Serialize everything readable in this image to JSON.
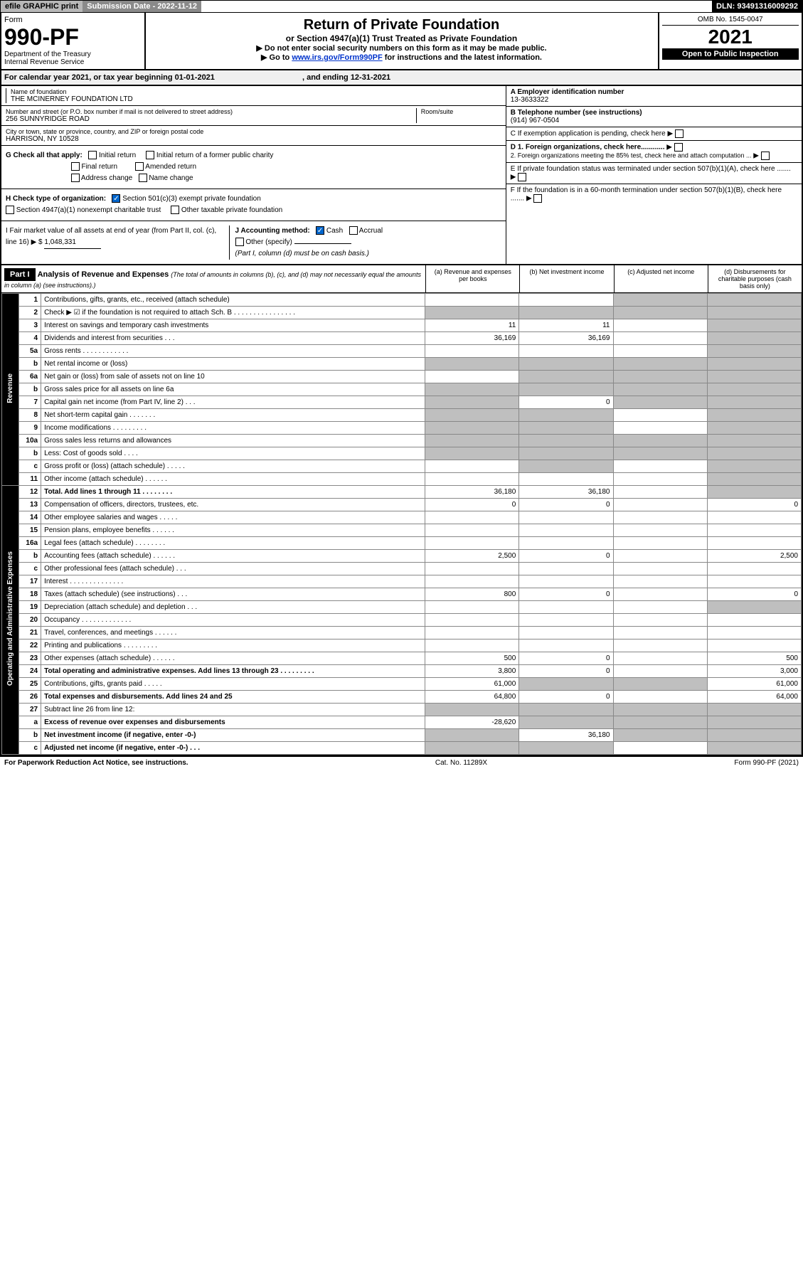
{
  "topbar": {
    "efile": "efile GRAPHIC print",
    "submission": "Submission Date - 2022-11-12",
    "dln": "DLN: 93491316009292"
  },
  "header": {
    "form_label": "Form",
    "form_no": "990-PF",
    "dept": "Department of the Treasury",
    "irs": "Internal Revenue Service",
    "title": "Return of Private Foundation",
    "subtitle": "or Section 4947(a)(1) Trust Treated as Private Foundation",
    "instr1": "▶ Do not enter social security numbers on this form as it may be made public.",
    "instr2a": "▶ Go to ",
    "instr2b": "www.irs.gov/Form990PF",
    "instr2c": " for instructions and the latest information.",
    "omb": "OMB No. 1545-0047",
    "year": "2021",
    "open": "Open to Public Inspection"
  },
  "calyear": {
    "text": "For calendar year 2021, or tax year beginning 01-01-2021",
    "ending": ", and ending 12-31-2021"
  },
  "info": {
    "name_label": "Name of foundation",
    "name": "THE MCINERNEY FOUNDATION LTD",
    "addr_label": "Number and street (or P.O. box number if mail is not delivered to street address)",
    "addr": "256 SUNNYRIDGE ROAD",
    "room_label": "Room/suite",
    "city_label": "City or town, state or province, country, and ZIP or foreign postal code",
    "city": "HARRISON, NY  10528",
    "ein_label": "A Employer identification number",
    "ein": "13-3633322",
    "tel_label": "B Telephone number (see instructions)",
    "tel": "(914) 967-0504",
    "c_label": "C If exemption application is pending, check here",
    "d1": "D 1. Foreign organizations, check here............",
    "d2": "2. Foreign organizations meeting the 85% test, check here and attach computation ...",
    "e_label": "E  If private foundation status was terminated under section 507(b)(1)(A), check here .......",
    "f_label": "F  If the foundation is in a 60-month termination under section 507(b)(1)(B), check here .......",
    "g_label": "G Check all that apply:",
    "g_initial": "Initial return",
    "g_initial_former": "Initial return of a former public charity",
    "g_final": "Final return",
    "g_amended": "Amended return",
    "g_address": "Address change",
    "g_name": "Name change",
    "h_label": "H Check type of organization:",
    "h_501c3": "Section 501(c)(3) exempt private foundation",
    "h_4947": "Section 4947(a)(1) nonexempt charitable trust",
    "h_other": "Other taxable private foundation",
    "i_label": "I Fair market value of all assets at end of year (from Part II, col. (c), line 16) ▶ $",
    "i_val": "1,048,331",
    "j_label": "J Accounting method:",
    "j_cash": "Cash",
    "j_accrual": "Accrual",
    "j_other": "Other (specify)",
    "j_note": "(Part I, column (d) must be on cash basis.)"
  },
  "part1": {
    "part_label": "Part I",
    "title": "Analysis of Revenue and Expenses",
    "title_note": " (The total of amounts in columns (b), (c), and (d) may not necessarily equal the amounts in column (a) (see instructions).)",
    "col_a": "(a)  Revenue and expenses per books",
    "col_b": "(b)  Net investment income",
    "col_c": "(c)  Adjusted net income",
    "col_d": "(d)  Disbursements for charitable purposes (cash basis only)"
  },
  "sides": {
    "revenue": "Revenue",
    "expenses": "Operating and Administrative Expenses"
  },
  "rows": [
    {
      "ln": "1",
      "desc": "Contributions, gifts, grants, etc., received (attach schedule)",
      "a": "",
      "b": "",
      "c_gray": true,
      "d_gray": true
    },
    {
      "ln": "2",
      "desc": "Check ▶ ☑ if the foundation is not required to attach Sch. B   .  .  .  .  .  .  .  .  .  .  .  .  .  .  .  .",
      "a_gray": true,
      "b_gray": true,
      "c_gray": true,
      "d_gray": true
    },
    {
      "ln": "3",
      "desc": "Interest on savings and temporary cash investments",
      "a": "11",
      "b": "11",
      "c": "",
      "d_gray": true
    },
    {
      "ln": "4",
      "desc": "Dividends and interest from securities   .  .  .",
      "a": "36,169",
      "b": "36,169",
      "c": "",
      "d_gray": true
    },
    {
      "ln": "5a",
      "desc": "Gross rents   .  .  .  .  .  .  .  .  .  .  .  .",
      "a": "",
      "b": "",
      "c": "",
      "d_gray": true
    },
    {
      "ln": "b",
      "desc": "Net rental income or (loss)",
      "a_gray": true,
      "b_gray": true,
      "c_gray": true,
      "d_gray": true
    },
    {
      "ln": "6a",
      "desc": "Net gain or (loss) from sale of assets not on line 10",
      "a": "",
      "b_gray": true,
      "c_gray": true,
      "d_gray": true
    },
    {
      "ln": "b",
      "desc": "Gross sales price for all assets on line 6a",
      "a_gray": true,
      "b_gray": true,
      "c_gray": true,
      "d_gray": true
    },
    {
      "ln": "7",
      "desc": "Capital gain net income (from Part IV, line 2)   .  .  .",
      "a_gray": true,
      "b": "0",
      "c_gray": true,
      "d_gray": true
    },
    {
      "ln": "8",
      "desc": "Net short-term capital gain   .  .  .  .  .  .  .",
      "a_gray": true,
      "b_gray": true,
      "c": "",
      "d_gray": true
    },
    {
      "ln": "9",
      "desc": "Income modifications   .  .  .  .  .  .  .  .  .",
      "a_gray": true,
      "b_gray": true,
      "c": "",
      "d_gray": true
    },
    {
      "ln": "10a",
      "desc": "Gross sales less returns and allowances",
      "a_gray": true,
      "b_gray": true,
      "c_gray": true,
      "d_gray": true
    },
    {
      "ln": "b",
      "desc": "Less: Cost of goods sold   .  .  .  .",
      "a_gray": true,
      "b_gray": true,
      "c_gray": true,
      "d_gray": true
    },
    {
      "ln": "c",
      "desc": "Gross profit or (loss) (attach schedule)   .  .  .  .  .",
      "a": "",
      "b_gray": true,
      "c": "",
      "d_gray": true
    },
    {
      "ln": "11",
      "desc": "Other income (attach schedule)   .  .  .  .  .  .",
      "a": "",
      "b": "",
      "c": "",
      "d_gray": true
    },
    {
      "ln": "12",
      "desc": "Total. Add lines 1 through 11   .  .  .  .  .  .  .  .",
      "bold": true,
      "a": "36,180",
      "b": "36,180",
      "c": "",
      "d_gray": true
    },
    {
      "ln": "13",
      "desc": "Compensation of officers, directors, trustees, etc.",
      "a": "0",
      "b": "0",
      "c": "",
      "d": "0"
    },
    {
      "ln": "14",
      "desc": "Other employee salaries and wages   .  .  .  .  .",
      "a": "",
      "b": "",
      "c": "",
      "d": ""
    },
    {
      "ln": "15",
      "desc": "Pension plans, employee benefits   .  .  .  .  .  .",
      "a": "",
      "b": "",
      "c": "",
      "d": ""
    },
    {
      "ln": "16a",
      "desc": "Legal fees (attach schedule)   .  .  .  .  .  .  .  .",
      "a": "",
      "b": "",
      "c": "",
      "d": ""
    },
    {
      "ln": "b",
      "desc": "Accounting fees (attach schedule)   .  .  .  .  .  .",
      "a": "2,500",
      "b": "0",
      "c": "",
      "d": "2,500"
    },
    {
      "ln": "c",
      "desc": "Other professional fees (attach schedule)   .  .  .",
      "a": "",
      "b": "",
      "c": "",
      "d": ""
    },
    {
      "ln": "17",
      "desc": "Interest   .  .  .  .  .  .  .  .  .  .  .  .  .  .",
      "a": "",
      "b": "",
      "c": "",
      "d": ""
    },
    {
      "ln": "18",
      "desc": "Taxes (attach schedule) (see instructions)   .  .  .",
      "a": "800",
      "b": "0",
      "c": "",
      "d": "0"
    },
    {
      "ln": "19",
      "desc": "Depreciation (attach schedule) and depletion   .  .  .",
      "a": "",
      "b": "",
      "c": "",
      "d_gray": true
    },
    {
      "ln": "20",
      "desc": "Occupancy   .  .  .  .  .  .  .  .  .  .  .  .  .",
      "a": "",
      "b": "",
      "c": "",
      "d": ""
    },
    {
      "ln": "21",
      "desc": "Travel, conferences, and meetings   .  .  .  .  .  .",
      "a": "",
      "b": "",
      "c": "",
      "d": ""
    },
    {
      "ln": "22",
      "desc": "Printing and publications   .  .  .  .  .  .  .  .  .",
      "a": "",
      "b": "",
      "c": "",
      "d": ""
    },
    {
      "ln": "23",
      "desc": "Other expenses (attach schedule)   .  .  .  .  .  .",
      "a": "500",
      "b": "0",
      "c": "",
      "d": "500"
    },
    {
      "ln": "24",
      "desc": "Total operating and administrative expenses. Add lines 13 through 23   .  .  .  .  .  .  .  .  .",
      "bold": true,
      "a": "3,800",
      "b": "0",
      "c": "",
      "d": "3,000"
    },
    {
      "ln": "25",
      "desc": "Contributions, gifts, grants paid   .  .  .  .  .",
      "a": "61,000",
      "b_gray": true,
      "c_gray": true,
      "d": "61,000"
    },
    {
      "ln": "26",
      "desc": "Total expenses and disbursements. Add lines 24 and 25",
      "bold": true,
      "a": "64,800",
      "b": "0",
      "c": "",
      "d": "64,000"
    },
    {
      "ln": "27",
      "desc": "Subtract line 26 from line 12:",
      "a_gray": true,
      "b_gray": true,
      "c_gray": true,
      "d_gray": true
    },
    {
      "ln": "a",
      "desc": "Excess of revenue over expenses and disbursements",
      "bold": true,
      "a": "-28,620",
      "b_gray": true,
      "c_gray": true,
      "d_gray": true
    },
    {
      "ln": "b",
      "desc": "Net investment income (if negative, enter -0-)",
      "bold": true,
      "a_gray": true,
      "b": "36,180",
      "c_gray": true,
      "d_gray": true
    },
    {
      "ln": "c",
      "desc": "Adjusted net income (if negative, enter -0-)   .  .  .",
      "bold": true,
      "a_gray": true,
      "b_gray": true,
      "c": "",
      "d_gray": true
    }
  ],
  "footer": {
    "left": "For Paperwork Reduction Act Notice, see instructions.",
    "mid": "Cat. No. 11289X",
    "right": "Form 990-PF (2021)"
  }
}
